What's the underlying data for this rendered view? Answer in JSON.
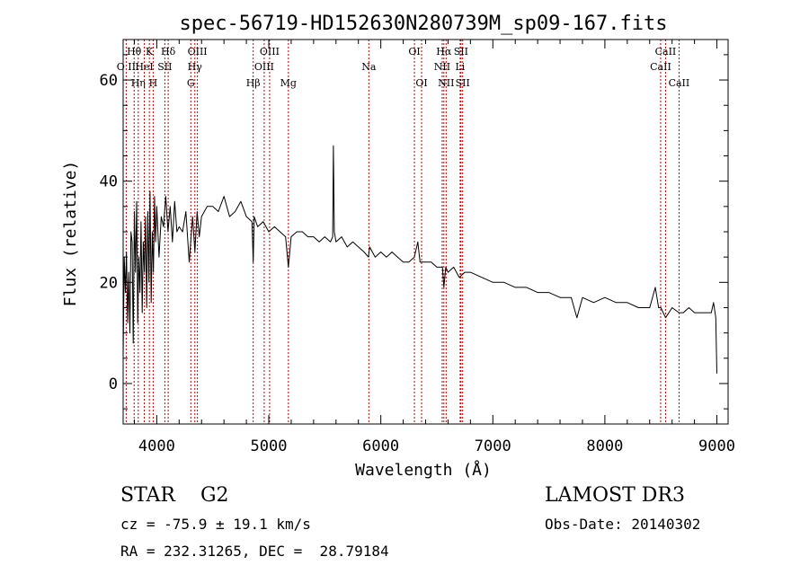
{
  "chart_data": {
    "type": "line",
    "title": "spec-56719-HD152630N280739M_sp09-167.fits",
    "xlabel": "Wavelength (Å)",
    "ylabel": "Flux (relative)",
    "xlim": [
      3700,
      9100
    ],
    "ylim": [
      -8,
      68
    ],
    "xticks": [
      4000,
      5000,
      6000,
      7000,
      8000,
      9000
    ],
    "yticks": [
      0,
      20,
      40,
      60
    ],
    "grid": false,
    "series": [
      {
        "name": "spectrum",
        "x": [
          3700,
          3710,
          3720,
          3730,
          3740,
          3750,
          3760,
          3770,
          3780,
          3790,
          3800,
          3810,
          3820,
          3830,
          3840,
          3850,
          3860,
          3870,
          3880,
          3890,
          3900,
          3910,
          3920,
          3930,
          3940,
          3950,
          3960,
          3970,
          3980,
          3990,
          4000,
          4020,
          4040,
          4060,
          4080,
          4100,
          4120,
          4140,
          4160,
          4180,
          4200,
          4230,
          4260,
          4290,
          4320,
          4340,
          4360,
          4380,
          4400,
          4450,
          4500,
          4550,
          4600,
          4650,
          4700,
          4750,
          4800,
          4850,
          4861,
          4870,
          4900,
          4950,
          5000,
          5050,
          5100,
          5150,
          5175,
          5200,
          5250,
          5300,
          5350,
          5400,
          5450,
          5500,
          5550,
          5570,
          5577,
          5585,
          5600,
          5650,
          5700,
          5750,
          5800,
          5850,
          5890,
          5900,
          5950,
          6000,
          6050,
          6100,
          6150,
          6200,
          6250,
          6300,
          6330,
          6350,
          6400,
          6450,
          6500,
          6550,
          6563,
          6580,
          6600,
          6650,
          6700,
          6750,
          6800,
          6900,
          7000,
          7100,
          7200,
          7300,
          7400,
          7500,
          7600,
          7700,
          7750,
          7800,
          7900,
          8000,
          8100,
          8200,
          8300,
          8400,
          8450,
          8480,
          8500,
          8542,
          8600,
          8662,
          8700,
          8750,
          8800,
          8850,
          8900,
          8950,
          8970,
          8990,
          9000
        ],
        "values": [
          5,
          25,
          18,
          26,
          12,
          22,
          10,
          30,
          28,
          8,
          34,
          22,
          36,
          12,
          25,
          18,
          32,
          14,
          28,
          22,
          33,
          15,
          34,
          20,
          38,
          16,
          30,
          22,
          37,
          28,
          35,
          25,
          33,
          31,
          37,
          30,
          35,
          28,
          36,
          30,
          31,
          30,
          34,
          24,
          33,
          26,
          34,
          29,
          33,
          35,
          35,
          34,
          37,
          33,
          34,
          36,
          33,
          32,
          24,
          33,
          31,
          32,
          30,
          31,
          30,
          29,
          23,
          29,
          30,
          30,
          29,
          29,
          28,
          29,
          28,
          29,
          47,
          30,
          28,
          29,
          27,
          28,
          27,
          26,
          25,
          27,
          25,
          26,
          25,
          26,
          25,
          24,
          24,
          25,
          28,
          24,
          24,
          24,
          23,
          23,
          19,
          23,
          22,
          23,
          21,
          22,
          22,
          21,
          20,
          20,
          19,
          19,
          18,
          18,
          17,
          17,
          13,
          17,
          16,
          17,
          16,
          16,
          15,
          15,
          19,
          15,
          15,
          13,
          15,
          14,
          14,
          15,
          14,
          14,
          14,
          14,
          16,
          13,
          2
        ]
      }
    ],
    "line_labels": [
      {
        "label": "O II",
        "wavelength": 3727,
        "row": 2
      },
      {
        "label": "Hθ",
        "wavelength": 3798,
        "row": 1
      },
      {
        "label": "Hη",
        "wavelength": 3835,
        "row": 3
      },
      {
        "label": "HeI",
        "wavelength": 3889,
        "row": 2
      },
      {
        "label": "K",
        "wavelength": 3934,
        "row": 1
      },
      {
        "label": "H",
        "wavelength": 3968,
        "row": 3
      },
      {
        "label": "SII",
        "wavelength": 4072,
        "row": 2
      },
      {
        "label": "Hδ",
        "wavelength": 4102,
        "row": 1
      },
      {
        "label": "G",
        "wavelength": 4304,
        "row": 3
      },
      {
        "label": "Hγ",
        "wavelength": 4340,
        "row": 2
      },
      {
        "label": "OIII",
        "wavelength": 4363,
        "row": 1
      },
      {
        "label": "Hβ",
        "wavelength": 4861,
        "row": 3
      },
      {
        "label": "OIII",
        "wavelength": 4959,
        "row": 2
      },
      {
        "label": "OIII",
        "wavelength": 5007,
        "row": 1
      },
      {
        "label": "Mg",
        "wavelength": 5175,
        "row": 3
      },
      {
        "label": "Na",
        "wavelength": 5893,
        "row": 2
      },
      {
        "label": "OI",
        "wavelength": 6300,
        "row": 1
      },
      {
        "label": "OI",
        "wavelength": 6364,
        "row": 3
      },
      {
        "label": "NII",
        "wavelength": 6548,
        "row": 2
      },
      {
        "label": "Hα",
        "wavelength": 6563,
        "row": 1
      },
      {
        "label": "NII",
        "wavelength": 6583,
        "row": 3
      },
      {
        "label": "Li",
        "wavelength": 6708,
        "row": 2
      },
      {
        "label": "SII",
        "wavelength": 6716,
        "row": 1
      },
      {
        "label": "SII",
        "wavelength": 6731,
        "row": 3
      },
      {
        "label": "CaII",
        "wavelength": 8498,
        "row": 2
      },
      {
        "label": "CaII",
        "wavelength": 8542,
        "row": 1
      },
      {
        "label": "CaII",
        "wavelength": 8662,
        "row": 3
      }
    ]
  },
  "info": {
    "class_line": "STAR    G2",
    "survey": "LAMOST DR3",
    "redshift": "cz = -75.9 ± 19.1 km/s",
    "obs_date": "Obs-Date: 20140302",
    "coords": "RA = 232.31265, DEC =  28.79184"
  },
  "colors": {
    "spectrum": "#000000",
    "line_markers": "#c00000",
    "axes": "#000000"
  }
}
